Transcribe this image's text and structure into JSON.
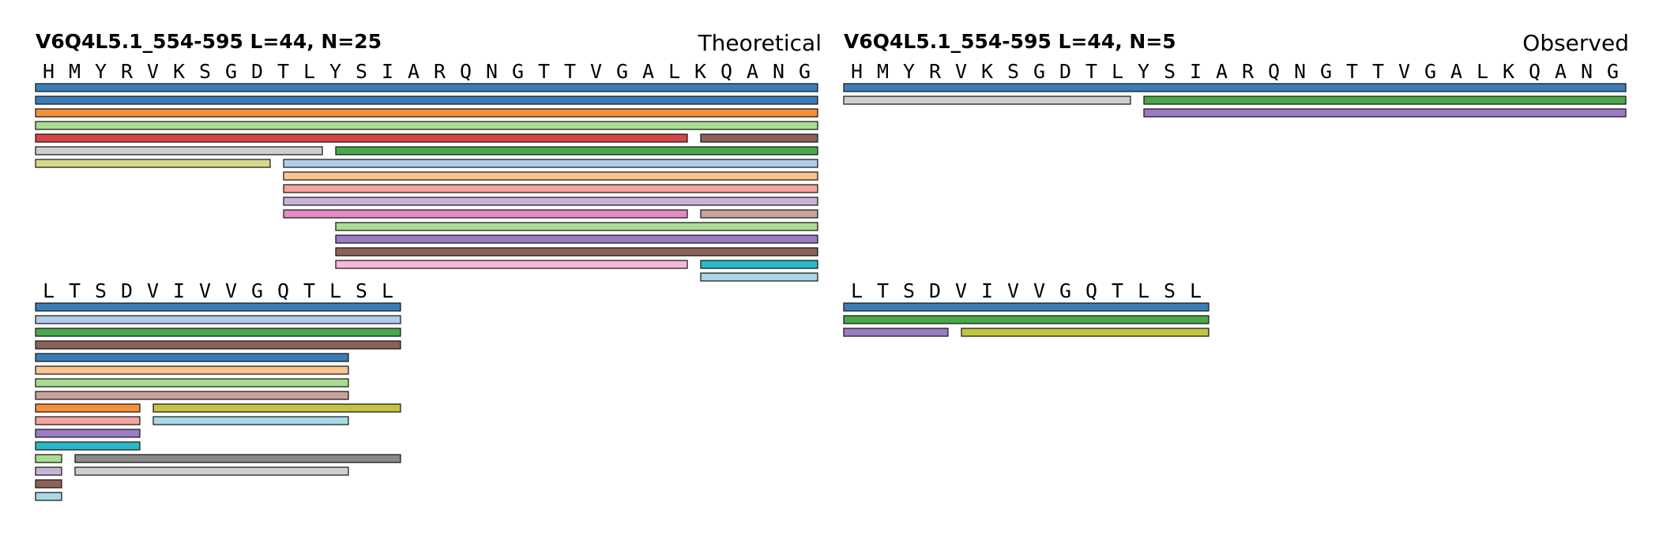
{
  "colors": {
    "blue": "#3b7db8",
    "orange": "#f5913a",
    "green": "#4aa84a",
    "red": "#d64545",
    "purple": "#9b7cc4",
    "brown": "#8c6258",
    "pink": "#e58ac4",
    "gray": "#8a8a8a",
    "olive": "#c4c442",
    "cyan": "#2bb8c8",
    "lightblue": "#b3cbea",
    "lightorange": "#fbc48e",
    "lightgreen": "#a9dc91",
    "lightred": "#f4a3a0",
    "lightpurple": "#c9b3d8",
    "lightbrown": "#c9a39b",
    "lightpink": "#f5b8d6",
    "lightgray": "#cfcfcf",
    "khaki": "#d8d88a",
    "lightcyan": "#a8d8e4"
  },
  "panels": [
    {
      "id": "theoretical",
      "title": "V6Q4L5.1_554-595  L=44, N=25",
      "label": "Theoretical",
      "rows": [
        {
          "sequence": [
            "H",
            "M",
            "Y",
            "R",
            "V",
            "K",
            "S",
            "G",
            "D",
            "T",
            "L",
            "Y",
            "S",
            "I",
            "A",
            "R",
            "Q",
            "N",
            "G",
            "T",
            "T",
            "V",
            "G",
            "A",
            "L",
            "K",
            "Q",
            "A",
            "N",
            "G"
          ],
          "bars": [
            [
              [
                0,
                30,
                "blue"
              ]
            ],
            [
              [
                0,
                30,
                "blue"
              ]
            ],
            [
              [
                0,
                30,
                "orange"
              ]
            ],
            [
              [
                0,
                30,
                "lightgreen"
              ]
            ],
            [
              [
                0,
                25,
                "red"
              ],
              [
                25,
                30,
                "brown"
              ]
            ],
            [
              [
                0,
                11,
                "lightgray"
              ],
              [
                11,
                30,
                "green"
              ]
            ],
            [
              [
                0,
                9,
                "khaki"
              ],
              [
                9,
                30,
                "lightblue"
              ]
            ],
            [
              [
                9,
                30,
                "lightorange"
              ]
            ],
            [
              [
                9,
                30,
                "lightred"
              ]
            ],
            [
              [
                9,
                30,
                "lightpurple"
              ]
            ],
            [
              [
                9,
                25,
                "pink"
              ],
              [
                25,
                30,
                "lightbrown"
              ]
            ],
            [
              [
                11,
                30,
                "lightgreen"
              ]
            ],
            [
              [
                11,
                30,
                "purple"
              ]
            ],
            [
              [
                11,
                30,
                "brown"
              ]
            ],
            [
              [
                11,
                25,
                "lightpink"
              ],
              [
                25,
                30,
                "cyan"
              ]
            ],
            [
              [
                25,
                30,
                "lightcyan"
              ]
            ]
          ]
        },
        {
          "sequence": [
            "L",
            "T",
            "S",
            "D",
            "V",
            "I",
            "V",
            "V",
            "G",
            "Q",
            "T",
            "L",
            "S",
            "L"
          ],
          "bars": [
            [
              [
                0,
                14,
                "blue"
              ]
            ],
            [
              [
                0,
                14,
                "lightblue"
              ]
            ],
            [
              [
                0,
                14,
                "green"
              ]
            ],
            [
              [
                0,
                14,
                "brown"
              ]
            ],
            [
              [
                0,
                12,
                "blue"
              ]
            ],
            [
              [
                0,
                12,
                "lightorange"
              ]
            ],
            [
              [
                0,
                12,
                "lightgreen"
              ]
            ],
            [
              [
                0,
                12,
                "lightbrown"
              ]
            ],
            [
              [
                0,
                4,
                "orange"
              ],
              [
                4,
                14,
                "olive"
              ]
            ],
            [
              [
                0,
                4,
                "lightred"
              ],
              [
                4,
                12,
                "lightcyan"
              ]
            ],
            [
              [
                0,
                4,
                "purple"
              ]
            ],
            [
              [
                0,
                4,
                "cyan"
              ]
            ],
            [
              [
                0,
                1,
                "lightgreen"
              ],
              [
                1,
                14,
                "gray"
              ]
            ],
            [
              [
                0,
                1,
                "lightpurple"
              ],
              [
                1,
                12,
                "lightgray"
              ]
            ],
            [
              [
                0,
                1,
                "brown"
              ]
            ],
            [
              [
                0,
                1,
                "lightcyan"
              ]
            ]
          ]
        }
      ]
    },
    {
      "id": "observed",
      "title": "V6Q4L5.1_554-595  L=44, N=5",
      "label": "Observed",
      "rows": [
        {
          "sequence": [
            "H",
            "M",
            "Y",
            "R",
            "V",
            "K",
            "S",
            "G",
            "D",
            "T",
            "L",
            "Y",
            "S",
            "I",
            "A",
            "R",
            "Q",
            "N",
            "G",
            "T",
            "T",
            "V",
            "G",
            "A",
            "L",
            "K",
            "Q",
            "A",
            "N",
            "G"
          ],
          "bars": [
            [
              [
                0,
                30,
                "blue"
              ]
            ],
            [
              [
                0,
                11,
                "lightgray"
              ],
              [
                11,
                30,
                "green"
              ]
            ],
            [
              [
                11,
                30,
                "purple"
              ]
            ]
          ]
        },
        {
          "sequence": [
            "L",
            "T",
            "S",
            "D",
            "V",
            "I",
            "V",
            "V",
            "G",
            "Q",
            "T",
            "L",
            "S",
            "L"
          ],
          "bars": [
            [
              [
                0,
                14,
                "blue"
              ]
            ],
            [
              [
                0,
                14,
                "green"
              ]
            ],
            [
              [
                0,
                4,
                "purple"
              ],
              [
                4,
                14,
                "olive"
              ]
            ]
          ]
        }
      ]
    }
  ]
}
